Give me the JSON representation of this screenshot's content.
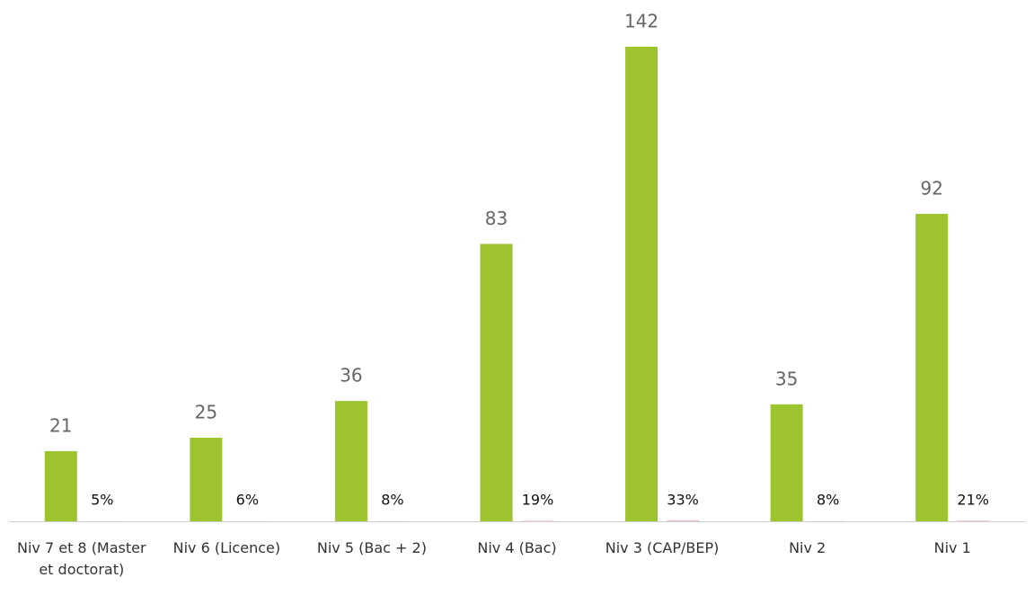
{
  "chart_data": {
    "type": "bar",
    "categories": [
      "Niv 7 et 8 (Master et doctorat)",
      "Niv 6 (Licence)",
      "Niv 5 (Bac + 2)",
      "Niv 4 (Bac)",
      "Niv 3 (CAP/BEP)",
      "Niv 2",
      "Niv 1"
    ],
    "series": [
      {
        "color": "#9dc32f",
        "values": [
          21,
          25,
          36,
          83,
          142,
          35,
          92
        ]
      },
      {
        "color": "#f2c4c8",
        "values": [
          0.05,
          0.06,
          0.08,
          0.19,
          0.33,
          0.08,
          0.21
        ],
        "value_labels": [
          "5%",
          "6%",
          "8%",
          "19%",
          "33%",
          "8%",
          "21%"
        ]
      }
    ]
  }
}
